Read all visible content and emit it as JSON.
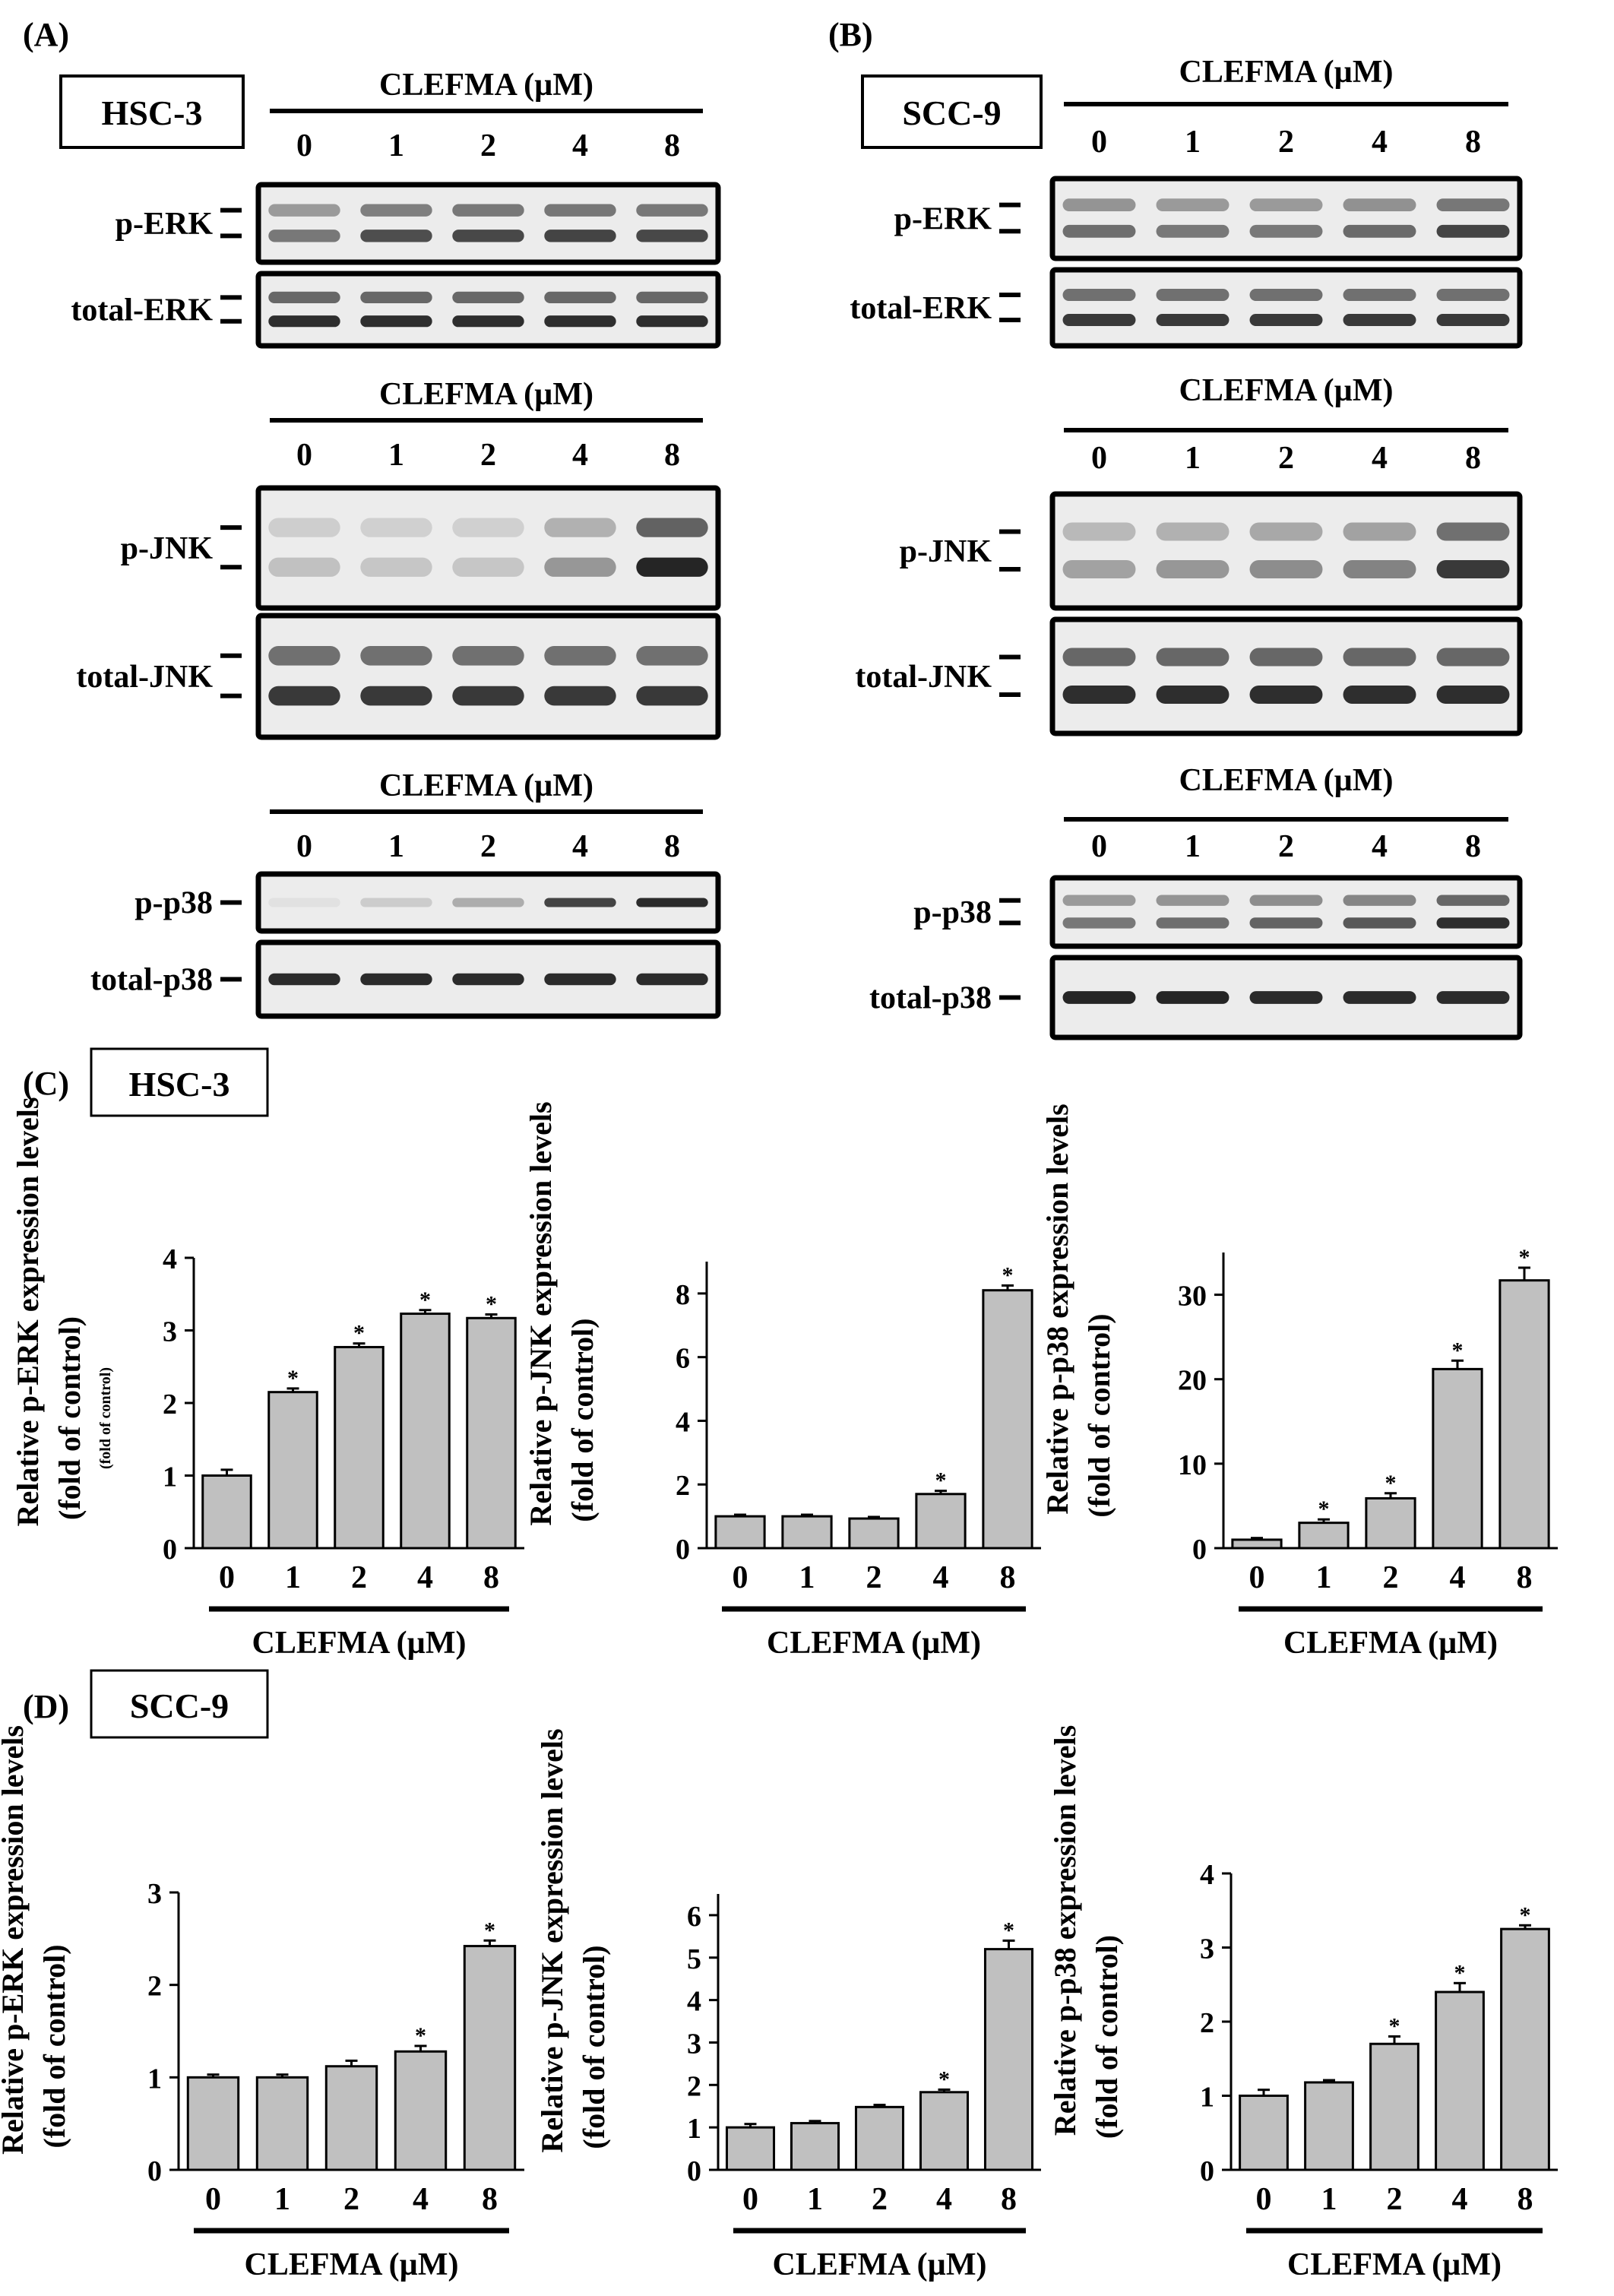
{
  "panels": {
    "A": {
      "letter": "(A)",
      "cell_line": "HSC-3"
    },
    "B": {
      "letter": "(B)",
      "cell_line": "SCC-9"
    },
    "C": {
      "letter": "(C)",
      "cell_line": "HSC-3"
    },
    "D": {
      "letter": "(D)",
      "cell_line": "SCC-9"
    }
  },
  "treatment_label": "CLEFMA (µM)",
  "doses": [
    "0",
    "1",
    "2",
    "4",
    "8"
  ],
  "blots": {
    "A": [
      {
        "group": "CLEFMA (µM)",
        "rows": [
          {
            "label": "p-ERK",
            "intensity": [
              0.55,
              0.75,
              0.78,
              0.8,
              0.78
            ],
            "bands": 2
          },
          {
            "label": "total-ERK",
            "intensity": [
              0.9,
              0.9,
              0.9,
              0.9,
              0.9
            ],
            "bands": 2
          }
        ]
      },
      {
        "group": "CLEFMA (µM)",
        "rows": [
          {
            "label": "p-JNK",
            "intensity": [
              0.2,
              0.18,
              0.18,
              0.4,
              0.95
            ],
            "bands": 2
          },
          {
            "label": "total-JNK",
            "intensity": [
              0.85,
              0.85,
              0.85,
              0.85,
              0.85
            ],
            "bands": 2
          }
        ]
      },
      {
        "group": "CLEFMA (µM)",
        "rows": [
          {
            "label": "p-p38",
            "intensity": [
              0.05,
              0.15,
              0.3,
              0.8,
              0.92
            ],
            "bands": 1
          },
          {
            "label": "total-p38",
            "intensity": [
              0.92,
              0.92,
              0.92,
              0.92,
              0.92
            ],
            "bands": 1
          }
        ]
      }
    ],
    "B": [
      {
        "group": "CLEFMA (µM)",
        "rows": [
          {
            "label": "p-ERK",
            "intensity": [
              0.6,
              0.55,
              0.55,
              0.62,
              0.8
            ],
            "bands": 2
          },
          {
            "label": "total-ERK",
            "intensity": [
              0.85,
              0.85,
              0.85,
              0.85,
              0.85
            ],
            "bands": 2
          }
        ]
      },
      {
        "group": "CLEFMA (µM)",
        "rows": [
          {
            "label": "p-JNK",
            "intensity": [
              0.35,
              0.4,
              0.45,
              0.5,
              0.85
            ],
            "bands": 2
          },
          {
            "label": "total-JNK",
            "intensity": [
              0.9,
              0.9,
              0.9,
              0.9,
              0.9
            ],
            "bands": 2
          }
        ]
      },
      {
        "group": "CLEFMA (µM)",
        "rows": [
          {
            "label": "p-p38",
            "intensity": [
              0.55,
              0.6,
              0.65,
              0.7,
              0.9
            ],
            "bands": 2
          },
          {
            "label": "total-p38",
            "intensity": [
              0.95,
              0.95,
              0.92,
              0.92,
              0.92
            ],
            "bands": 1
          }
        ]
      }
    ]
  },
  "chart_data": [
    {
      "panel": "C",
      "type": "bar",
      "title": "HSC-3",
      "categories": [
        "0",
        "1",
        "2",
        "4",
        "8"
      ],
      "values": [
        1.0,
        2.15,
        2.77,
        3.23,
        3.17
      ],
      "errors": [
        0.08,
        0.05,
        0.05,
        0.05,
        0.05
      ],
      "significant": [
        "",
        "*",
        "*",
        "*",
        "*"
      ],
      "ylim": [
        0,
        4
      ],
      "yticks": [
        "0",
        "1",
        "2",
        "3",
        "4"
      ],
      "ylabel": "Relative p-ERK expression levels",
      "ylabel2": "(fold of control)",
      "ylabel_extra": "(fold of control)",
      "xlabel": "CLEFMA (µM)"
    },
    {
      "panel": "C",
      "type": "bar",
      "title": "HSC-3",
      "categories": [
        "0",
        "1",
        "2",
        "4",
        "8"
      ],
      "values": [
        1.0,
        1.0,
        0.93,
        1.7,
        8.1
      ],
      "errors": [
        0.05,
        0.05,
        0.05,
        0.1,
        0.15
      ],
      "significant": [
        "",
        "",
        "",
        "*",
        "*"
      ],
      "ylim": [
        0,
        9
      ],
      "yticks": [
        "0",
        "2",
        "4",
        "6",
        "8"
      ],
      "ylabel": "Relative p-JNK expression levels",
      "ylabel2": "(fold of control)",
      "ylabel_extra": "",
      "xlabel": "CLEFMA (µM)"
    },
    {
      "panel": "C",
      "type": "bar",
      "title": "HSC-3",
      "categories": [
        "0",
        "1",
        "2",
        "4",
        "8"
      ],
      "values": [
        1.0,
        3.0,
        5.9,
        21.2,
        31.7
      ],
      "errors": [
        0.2,
        0.4,
        0.6,
        1.0,
        1.5
      ],
      "significant": [
        "",
        "*",
        "*",
        "*",
        "*"
      ],
      "ylim": [
        0,
        35
      ],
      "yticks": [
        "0",
        "10",
        "20",
        "30"
      ],
      "ylabel": "Relative p-p38 expression levels",
      "ylabel2": "(fold of control)",
      "ylabel_extra": "",
      "xlabel": "CLEFMA (µM)"
    },
    {
      "panel": "D",
      "type": "bar",
      "title": "SCC-9",
      "categories": [
        "0",
        "1",
        "2",
        "4",
        "8"
      ],
      "values": [
        1.0,
        1.0,
        1.12,
        1.28,
        2.42
      ],
      "errors": [
        0.03,
        0.03,
        0.06,
        0.06,
        0.06
      ],
      "significant": [
        "",
        "",
        "",
        "*",
        "*"
      ],
      "ylim": [
        0,
        3
      ],
      "yticks": [
        "0",
        "1",
        "2",
        "3"
      ],
      "ylabel": "Relative p-ERK expression levels",
      "ylabel2": "(fold of control)",
      "ylabel_extra": "",
      "xlabel": "CLEFMA (µM)"
    },
    {
      "panel": "D",
      "type": "bar",
      "title": "SCC-9",
      "categories": [
        "0",
        "1",
        "2",
        "4",
        "8"
      ],
      "values": [
        1.0,
        1.1,
        1.48,
        1.83,
        5.2
      ],
      "errors": [
        0.08,
        0.05,
        0.05,
        0.06,
        0.2
      ],
      "significant": [
        "",
        "",
        "",
        "*",
        "*"
      ],
      "ylim": [
        0,
        6.5
      ],
      "yticks": [
        "0",
        "1",
        "2",
        "3",
        "4",
        "5",
        "6"
      ],
      "ylabel": "Relative p-JNK expression levels",
      "ylabel2": "(fold of control)",
      "ylabel_extra": "",
      "xlabel": "CLEFMA (µM)"
    },
    {
      "panel": "D",
      "type": "bar",
      "title": "SCC-9",
      "categories": [
        "0",
        "1",
        "2",
        "4",
        "8"
      ],
      "values": [
        1.0,
        1.18,
        1.7,
        2.4,
        3.25
      ],
      "errors": [
        0.08,
        0.03,
        0.1,
        0.12,
        0.05
      ],
      "significant": [
        "",
        "",
        "*",
        "*",
        "*"
      ],
      "ylim": [
        0,
        4
      ],
      "yticks": [
        "0",
        "1",
        "2",
        "3",
        "4"
      ],
      "ylabel": "Relative p-p38 expression levels",
      "ylabel2": "(fold of control)",
      "ylabel_extra": "",
      "xlabel": "CLEFMA (µM)"
    }
  ],
  "colors": {
    "bar_fill": "#c0c0c0",
    "stroke": "#000000",
    "blot_bg": "#ececec",
    "band": "#1a1a1a"
  }
}
